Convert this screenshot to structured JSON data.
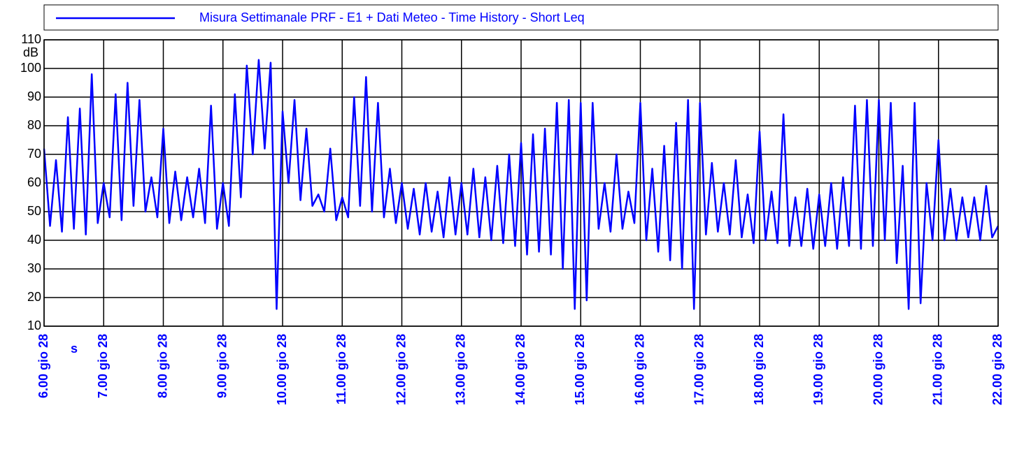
{
  "chart_data": {
    "type": "line",
    "y_label": "dB",
    "x_label": "s",
    "series": [
      {
        "name": "Misura Settimanale PRF - E1 + Dati Meteo - Time History - Short Leq",
        "color": "#0000ff",
        "x": [
          6,
          6.1,
          6.2,
          6.3,
          6.4,
          6.5,
          6.6,
          6.7,
          6.8,
          6.9,
          7,
          7.1,
          7.2,
          7.3,
          7.4,
          7.5,
          7.6,
          7.7,
          7.8,
          7.9,
          8,
          8.1,
          8.2,
          8.3,
          8.4,
          8.5,
          8.6,
          8.7,
          8.8,
          8.9,
          9,
          9.1,
          9.2,
          9.3,
          9.4,
          9.5,
          9.6,
          9.7,
          9.8,
          9.9,
          10,
          10.1,
          10.2,
          10.3,
          10.4,
          10.5,
          10.6,
          10.7,
          10.8,
          10.9,
          11,
          11.1,
          11.2,
          11.3,
          11.4,
          11.5,
          11.6,
          11.7,
          11.8,
          11.9,
          12,
          12.1,
          12.2,
          12.3,
          12.4,
          12.5,
          12.6,
          12.7,
          12.8,
          12.9,
          13,
          13.1,
          13.2,
          13.3,
          13.4,
          13.5,
          13.6,
          13.7,
          13.8,
          13.9,
          14,
          14.1,
          14.2,
          14.3,
          14.4,
          14.5,
          14.6,
          14.7,
          14.8,
          14.9,
          15,
          15.1,
          15.2,
          15.3,
          15.4,
          15.5,
          15.6,
          15.7,
          15.8,
          15.9,
          16,
          16.1,
          16.2,
          16.3,
          16.4,
          16.5,
          16.6,
          16.7,
          16.8,
          16.9,
          17,
          17.1,
          17.2,
          17.3,
          17.4,
          17.5,
          17.6,
          17.7,
          17.8,
          17.9,
          18,
          18.1,
          18.2,
          18.3,
          18.4,
          18.5,
          18.6,
          18.7,
          18.8,
          18.9,
          19,
          19.1,
          19.2,
          19.3,
          19.4,
          19.5,
          19.6,
          19.7,
          19.8,
          19.9,
          20,
          20.1,
          20.2,
          20.3,
          20.4,
          20.5,
          20.6,
          20.7,
          20.8,
          20.9,
          21,
          21.1,
          21.2,
          21.3,
          21.4,
          21.5,
          21.6,
          21.7,
          21.8,
          21.9,
          22
        ],
        "values": [
          72,
          45,
          68,
          43,
          83,
          44,
          86,
          42,
          98,
          46,
          60,
          48,
          91,
          47,
          95,
          52,
          89,
          50,
          62,
          48,
          79,
          46,
          64,
          47,
          62,
          48,
          65,
          46,
          87,
          44,
          60,
          45,
          91,
          55,
          101,
          70,
          103,
          72,
          102,
          16,
          85,
          60,
          89,
          54,
          79,
          52,
          56,
          50,
          72,
          47,
          55,
          48,
          90,
          52,
          97,
          50,
          88,
          48,
          65,
          46,
          60,
          44,
          58,
          42,
          60,
          43,
          57,
          41,
          62,
          42,
          60,
          42,
          65,
          41,
          62,
          40,
          66,
          39,
          70,
          38,
          74,
          35,
          77,
          36,
          79,
          35,
          88,
          30,
          89,
          16,
          88,
          19,
          88,
          44,
          60,
          43,
          70,
          44,
          57,
          46,
          88,
          40,
          65,
          36,
          73,
          33,
          81,
          30,
          89,
          16,
          88,
          42,
          67,
          43,
          60,
          42,
          68,
          41,
          56,
          39,
          78,
          40,
          57,
          39,
          84,
          38,
          55,
          38,
          58,
          37,
          56,
          38,
          60,
          37,
          62,
          38,
          87,
          37,
          89,
          38,
          89,
          40,
          88,
          32,
          66,
          16,
          88,
          18,
          60,
          40,
          75,
          40,
          58,
          40,
          55,
          41,
          55,
          40,
          59,
          41,
          45
        ]
      }
    ],
    "xlim": [
      6,
      22
    ],
    "xticks": [
      {
        "value": 6,
        "label": "6.00 gio 28"
      },
      {
        "value": 7,
        "label": "7.00 gio 28"
      },
      {
        "value": 8,
        "label": "8.00 gio 28"
      },
      {
        "value": 9,
        "label": "9.00 gio 28"
      },
      {
        "value": 10,
        "label": "10.00 gio 28"
      },
      {
        "value": 11,
        "label": "11.00 gio 28"
      },
      {
        "value": 12,
        "label": "12.00 gio 28"
      },
      {
        "value": 13,
        "label": "13.00 gio 28"
      },
      {
        "value": 14,
        "label": "14.00 gio 28"
      },
      {
        "value": 15,
        "label": "15.00 gio 28"
      },
      {
        "value": 16,
        "label": "16.00 gio 28"
      },
      {
        "value": 17,
        "label": "17.00 gio 28"
      },
      {
        "value": 18,
        "label": "18.00 gio 28"
      },
      {
        "value": 19,
        "label": "19.00 gio 28"
      },
      {
        "value": 20,
        "label": "20.00 gio 28"
      },
      {
        "value": 21,
        "label": "21.00 gio 28"
      },
      {
        "value": 22,
        "label": "22.00 gio 28"
      }
    ],
    "ylim": [
      10,
      110
    ],
    "yticks": [
      10,
      20,
      30,
      40,
      50,
      60,
      70,
      80,
      90,
      100,
      110
    ],
    "grid": true
  }
}
